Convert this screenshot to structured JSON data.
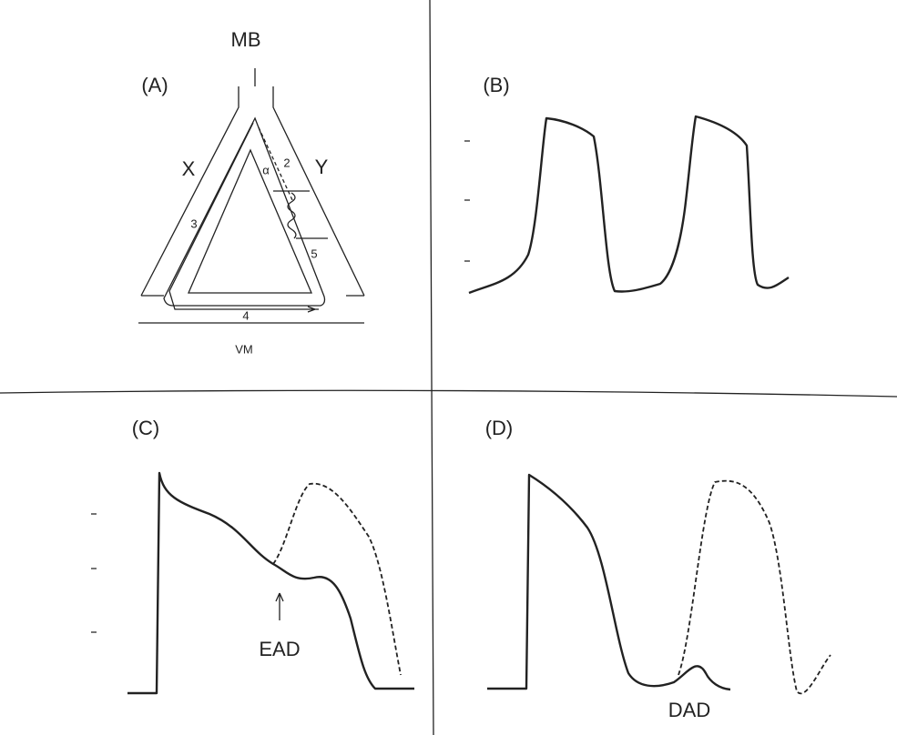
{
  "panel_a": {
    "label": "(A)",
    "top": "MB",
    "bottom": "VM",
    "left": "X",
    "right": "Y",
    "angle": "α",
    "pathway_labels": [
      "2",
      "3",
      "4",
      "5"
    ]
  },
  "panel_b": {
    "label": "(B)"
  },
  "panel_c": {
    "label": "(C)",
    "annotation": "EAD"
  },
  "panel_d": {
    "label": "(D)",
    "annotation": "DAD"
  }
}
